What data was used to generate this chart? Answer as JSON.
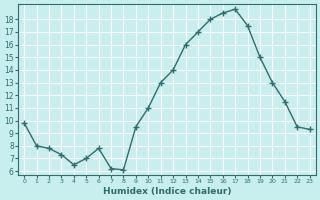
{
  "x": [
    0,
    1,
    2,
    3,
    4,
    5,
    6,
    7,
    8,
    9,
    10,
    11,
    12,
    13,
    14,
    15,
    16,
    17,
    18,
    19,
    20,
    21,
    22,
    23
  ],
  "y": [
    9.8,
    8.0,
    7.8,
    7.3,
    6.5,
    7.0,
    7.8,
    6.2,
    6.1,
    9.5,
    11.0,
    13.0,
    14.0,
    16.0,
    17.0,
    18.0,
    18.5,
    18.8,
    17.5,
    15.0,
    13.0,
    11.5,
    9.5,
    9.3
  ],
  "xlabel": "Humidex (Indice chaleur)",
  "line_color": "#2d6e6e",
  "bg_color": "#c8eeee",
  "grid_color": "#ffffff",
  "ylim_min": 5.7,
  "ylim_max": 19.2,
  "xlim_min": -0.5,
  "xlim_max": 23.5,
  "yticks": [
    6,
    7,
    8,
    9,
    10,
    11,
    12,
    13,
    14,
    15,
    16,
    17,
    18
  ],
  "xticks": [
    0,
    1,
    2,
    3,
    4,
    5,
    6,
    7,
    8,
    9,
    10,
    11,
    12,
    13,
    14,
    15,
    16,
    17,
    18,
    19,
    20,
    21,
    22,
    23
  ]
}
